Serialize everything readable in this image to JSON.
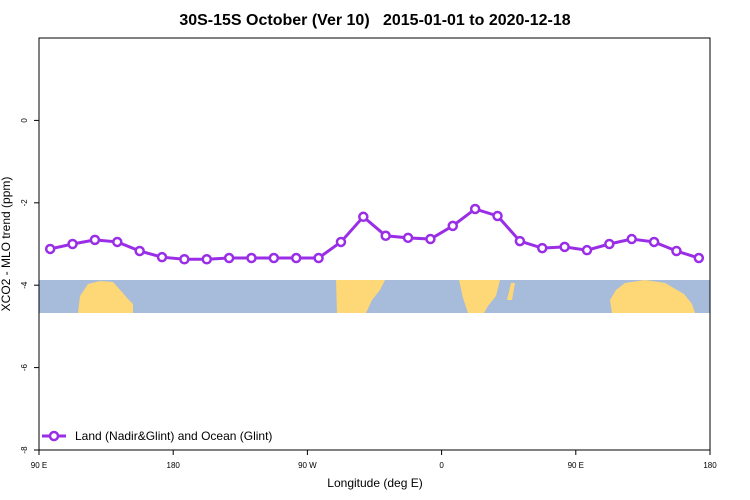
{
  "chart_data": {
    "type": "line",
    "title": "30S-15S October (Ver 10)   2015-01-01 to 2020-12-18",
    "x_label": "Longitude (deg E)",
    "y_label": "XCO2 - MLO trend (ppm)",
    "x": [
      97.5,
      112.5,
      127.5,
      142.5,
      157.5,
      172.5,
      187.5,
      202.5,
      217.5,
      232.5,
      247.5,
      262.5,
      277.5,
      292.5,
      307.5,
      322.5,
      337.5,
      352.5,
      367.5,
      382.5,
      397.5,
      412.5,
      427.5,
      442.5,
      457.5,
      472.5,
      487.5,
      502.5,
      517.5,
      532.5
    ],
    "series": [
      {
        "name": "Land (Nadir&Glint) and Ocean (Glint)",
        "color": "#9a2ee6",
        "values": [
          -3.12,
          -3.0,
          -2.9,
          -2.95,
          -3.17,
          -3.32,
          -3.37,
          -3.37,
          -3.34,
          -3.34,
          -3.34,
          -3.34,
          -3.34,
          -2.95,
          -2.34,
          -2.8,
          -2.85,
          -2.88,
          -2.56,
          -2.15,
          -2.32,
          -2.93,
          -3.1,
          -3.07,
          -3.15,
          -3.0,
          -2.88,
          -2.95,
          -3.17,
          -3.34
        ]
      }
    ],
    "xlim": [
      90,
      540
    ],
    "xticks": [
      {
        "value": 90,
        "label": "90 E"
      },
      {
        "value": 180,
        "label": "180"
      },
      {
        "value": 270,
        "label": "90 W"
      },
      {
        "value": 360,
        "label": "0"
      },
      {
        "value": 450,
        "label": "90 E"
      },
      {
        "value": 540,
        "label": "180"
      }
    ],
    "ylim": [
      -8,
      2
    ],
    "yticks": [
      0,
      -2,
      -4,
      -6,
      -8
    ],
    "legend": "bottomleft"
  }
}
